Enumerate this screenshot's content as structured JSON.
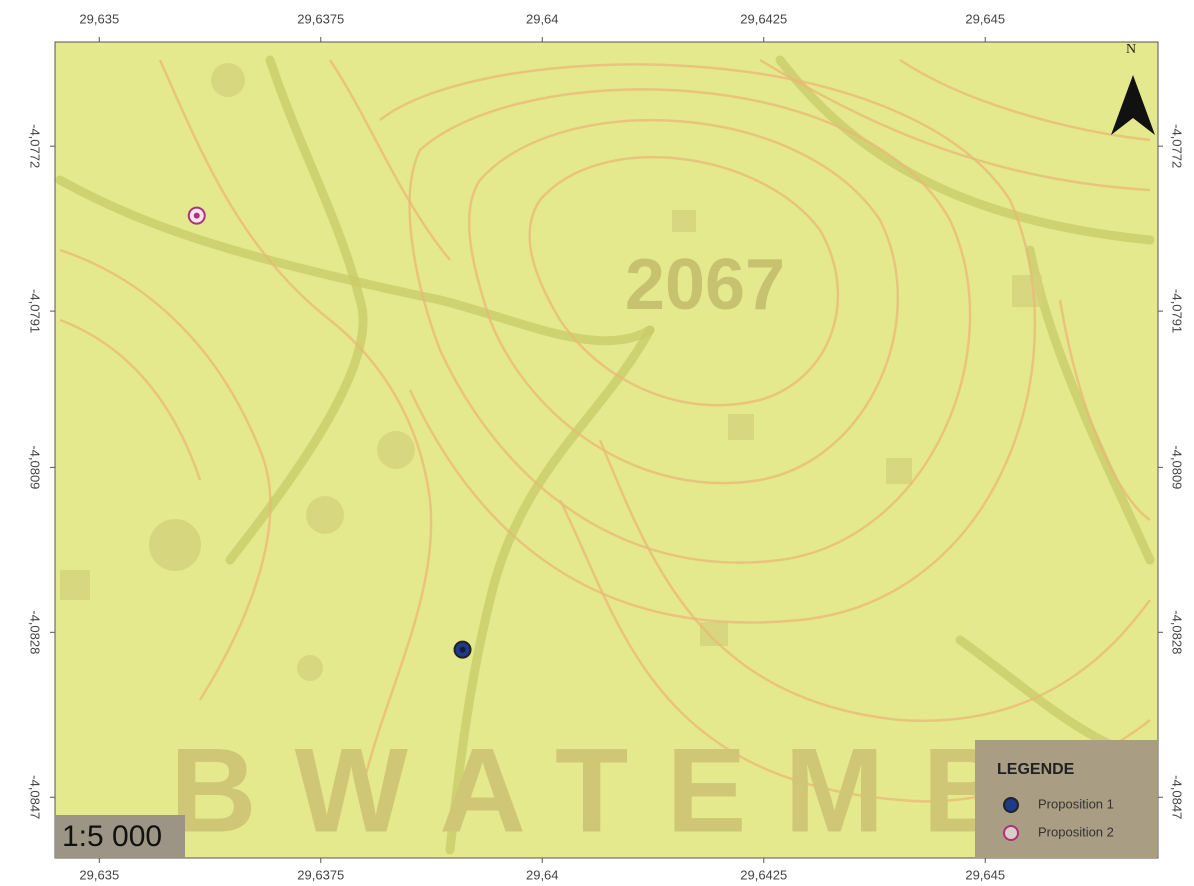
{
  "map": {
    "xlim": [
      29.6345,
      29.64695
    ],
    "ylim": [
      -4.0854,
      -4.076
    ],
    "xticks": [
      {
        "value": 29.635,
        "label": "29,635"
      },
      {
        "value": 29.6375,
        "label": "29,6375"
      },
      {
        "value": 29.64,
        "label": "29,64"
      },
      {
        "value": 29.6425,
        "label": "29,6425"
      },
      {
        "value": 29.645,
        "label": "29,645"
      }
    ],
    "yticks": [
      {
        "value": -4.0772,
        "label": "-4,0772"
      },
      {
        "value": -4.0791,
        "label": "-4,0791"
      },
      {
        "value": -4.0809,
        "label": "-4,0809"
      },
      {
        "value": -4.0828,
        "label": "-4,0828"
      },
      {
        "value": -4.0847,
        "label": "-4,0847"
      }
    ],
    "points": [
      {
        "name": "Proposition 1",
        "lon": 29.6391,
        "lat": -4.083,
        "color": "#1f3a8a"
      },
      {
        "name": "Proposition 2",
        "lon": 29.6361,
        "lat": -4.078,
        "color": "#b0307a"
      }
    ]
  },
  "labels": {
    "elevation": "2067",
    "place": "BWATEMB",
    "north": "N",
    "scale": "1:5 000"
  },
  "legend": {
    "title": "LEGENDE"
  }
}
